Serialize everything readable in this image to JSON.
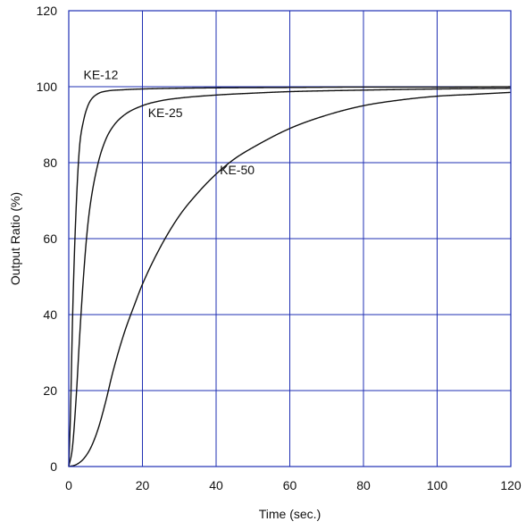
{
  "chart_data": {
    "type": "line",
    "title": "",
    "xlabel": "Time (sec.)",
    "ylabel": "Output Ratio (%)",
    "xlim": [
      0,
      120
    ],
    "ylim": [
      0,
      120
    ],
    "x_ticks": [
      0,
      20,
      40,
      60,
      80,
      100,
      120
    ],
    "y_ticks": [
      0,
      20,
      40,
      60,
      80,
      100,
      120
    ],
    "grid": true,
    "grid_color": "#1f2fb3",
    "series_color": "#111111",
    "series": [
      {
        "name": "KE-12",
        "points": [
          [
            0,
            0
          ],
          [
            0.5,
            15
          ],
          [
            1,
            38
          ],
          [
            1.5,
            55
          ],
          [
            2,
            68
          ],
          [
            2.5,
            78
          ],
          [
            3,
            85
          ],
          [
            4,
            91
          ],
          [
            5,
            94.5
          ],
          [
            6,
            96.5
          ],
          [
            8,
            98.2
          ],
          [
            10,
            98.8
          ],
          [
            15,
            99.2
          ],
          [
            20,
            99.4
          ],
          [
            30,
            99.6
          ],
          [
            40,
            99.7
          ],
          [
            60,
            99.8
          ],
          [
            80,
            99.9
          ],
          [
            100,
            99.9
          ],
          [
            120,
            100
          ]
        ]
      },
      {
        "name": "KE-25",
        "points": [
          [
            0,
            0
          ],
          [
            1,
            5
          ],
          [
            2,
            18
          ],
          [
            3,
            35
          ],
          [
            4,
            50
          ],
          [
            5,
            62
          ],
          [
            6,
            70
          ],
          [
            8,
            80
          ],
          [
            10,
            86
          ],
          [
            12,
            89.5
          ],
          [
            15,
            92.5
          ],
          [
            20,
            95
          ],
          [
            25,
            96.3
          ],
          [
            30,
            97
          ],
          [
            40,
            97.8
          ],
          [
            50,
            98.3
          ],
          [
            60,
            98.7
          ],
          [
            80,
            99.1
          ],
          [
            100,
            99.4
          ],
          [
            120,
            99.6
          ]
        ]
      },
      {
        "name": "KE-50",
        "points": [
          [
            0,
            0
          ],
          [
            2,
            0.5
          ],
          [
            4,
            2
          ],
          [
            6,
            5
          ],
          [
            8,
            10
          ],
          [
            10,
            17
          ],
          [
            12,
            25
          ],
          [
            15,
            35
          ],
          [
            18,
            43
          ],
          [
            20,
            48
          ],
          [
            25,
            58
          ],
          [
            30,
            66
          ],
          [
            35,
            72
          ],
          [
            40,
            77
          ],
          [
            45,
            81
          ],
          [
            50,
            84
          ],
          [
            60,
            89
          ],
          [
            70,
            92.5
          ],
          [
            80,
            95
          ],
          [
            90,
            96.5
          ],
          [
            100,
            97.5
          ],
          [
            110,
            98
          ],
          [
            120,
            98.5
          ]
        ]
      }
    ],
    "annotations": [
      {
        "text": "KE-12",
        "x": 4,
        "y": 102
      },
      {
        "text": "KE-25",
        "x": 21.5,
        "y": 92
      },
      {
        "text": "KE-50",
        "x": 41,
        "y": 77
      }
    ]
  }
}
